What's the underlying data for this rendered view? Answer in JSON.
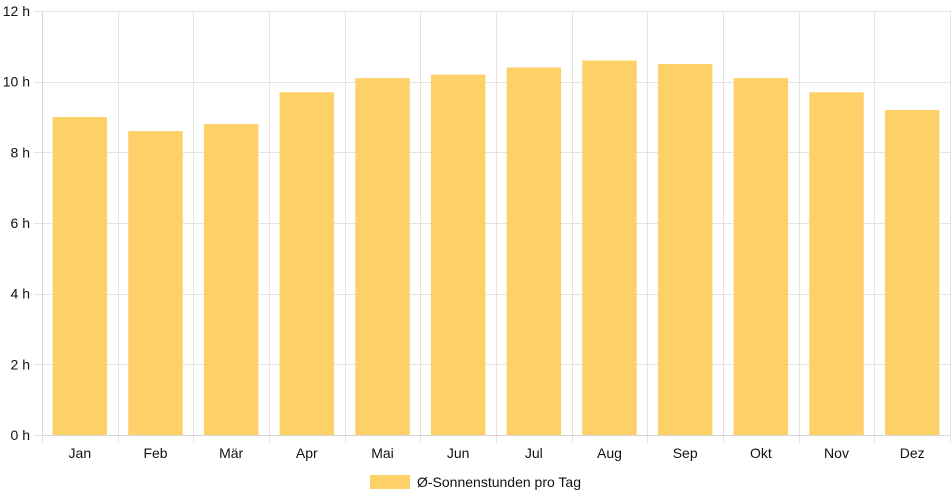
{
  "chart_data": {
    "type": "bar",
    "categories": [
      "Jan",
      "Feb",
      "Mär",
      "Apr",
      "Mai",
      "Jun",
      "Jul",
      "Aug",
      "Sep",
      "Okt",
      "Nov",
      "Dez"
    ],
    "series": [
      {
        "name": "Ø-Sonnenstunden pro Tag",
        "values": [
          9.0,
          8.6,
          8.8,
          9.7,
          10.1,
          10.2,
          10.4,
          10.6,
          10.5,
          10.1,
          9.7,
          9.2
        ],
        "color": "#fdd068"
      }
    ],
    "y_ticks": [
      "0 h",
      "2 h",
      "4 h",
      "6 h",
      "8 h",
      "10 h",
      "12 h"
    ],
    "ylim": [
      0,
      12
    ],
    "y_step": 2,
    "grid": true,
    "legend_position": "bottom-center"
  }
}
